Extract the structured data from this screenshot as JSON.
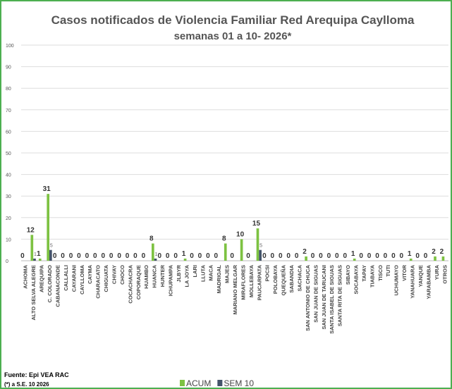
{
  "chart_data": {
    "type": "bar",
    "title": "Casos notificados  de Violencia Familiar Red Arequipa Caylloma",
    "subtitle": "semanas 01 a 10- 2026*",
    "categories": [
      "ACHOMA",
      "ALTO SELVA ALEGRE",
      "AREQUIPA",
      "C. COLORADO",
      "CABANACONDE",
      "CALLALLI",
      "CAYARANI",
      "CAYLLOMA",
      "CAYMA",
      "CHARACATO",
      "CHIGUATA",
      "CHIVAY",
      "CHOCO",
      "COCACHACRA",
      "COPORAQUE",
      "HUAMBO",
      "HUANCA",
      "HUNTER",
      "ICHUPAMPA",
      "JLBYR",
      "LA JOYA",
      "LARI",
      "LLUTA",
      "MACA",
      "MADRIGAL",
      "MAJES",
      "MARIANO MELGAR",
      "MIRAFLORES",
      "MOLLEBAYA",
      "PAUCARPATA",
      "POCSI",
      "POLOBAYA",
      "QUEQUEÑA",
      "SABANDIA",
      "SACHACA",
      "SAN ANTONIO DE CHUCA",
      "SAN JUAN DE SIGUAS",
      "SAN JUAN DE TARUCANI",
      "SANTA ISABEL DE SIGUAS",
      "SANTA RITA DE SIGUAS",
      "SIBAYO",
      "SOCABAYA",
      "TAPAY",
      "TIABAYA",
      "TISCO",
      "TUTI",
      "UCHUMAYO",
      "VITOR",
      "YANAHUARA",
      "YANQUE",
      "YARABAMBA",
      "YURA",
      "OTROS"
    ],
    "series": [
      {
        "name": "ACUM",
        "color": "#7dc242",
        "values": [
          0,
          12,
          1,
          31,
          0,
          0,
          0,
          0,
          0,
          0,
          0,
          0,
          0,
          0,
          0,
          0,
          8,
          0,
          0,
          0,
          1,
          0,
          0,
          0,
          0,
          8,
          0,
          10,
          0,
          15,
          0,
          0,
          0,
          0,
          0,
          2,
          0,
          0,
          0,
          0,
          0,
          1,
          0,
          0,
          0,
          0,
          0,
          0,
          1,
          0,
          0,
          2,
          2
        ]
      },
      {
        "name": "SEM 10",
        "color": "#44546a",
        "values": [
          0,
          1,
          0,
          5,
          0,
          0,
          0,
          0,
          0,
          0,
          0,
          0,
          0,
          0,
          0,
          0,
          1,
          0,
          0,
          0,
          0,
          0,
          0,
          0,
          0,
          0,
          0,
          0,
          0,
          5,
          0,
          0,
          0,
          0,
          0,
          0,
          0,
          0,
          0,
          0,
          0,
          0,
          0,
          0,
          0,
          0,
          0,
          0,
          0,
          0,
          0,
          0,
          0
        ]
      }
    ],
    "ylim": [
      0,
      100
    ],
    "yticks": [
      0,
      10,
      20,
      30,
      40,
      50,
      60,
      70,
      80,
      90,
      100
    ],
    "grid": true,
    "legend": "bottom",
    "source": "Fuente: Epi VEA RAC",
    "note": "(*) a S.E. 10 2026"
  }
}
